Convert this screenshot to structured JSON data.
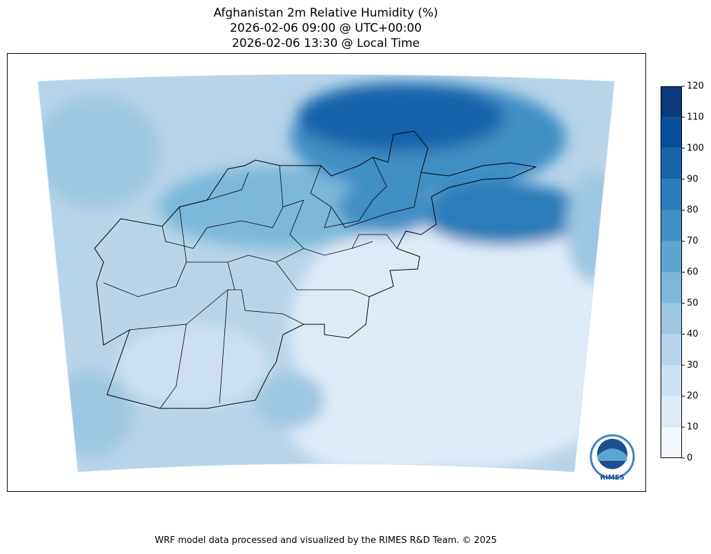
{
  "header": {
    "title": [
      "Afghanistan 2m Relative Humidity (%)",
      "2026-02-06 09:00 @ UTC+00:00",
      "2026-02-06 13:30 @ Local Time"
    ]
  },
  "colorbar": {
    "ticks": [
      0,
      10,
      20,
      30,
      40,
      50,
      60,
      70,
      80,
      90,
      100,
      110,
      120
    ],
    "colors": [
      "#f2f8fd",
      "#deebf7",
      "#cde0f1",
      "#b7d4ea",
      "#9cc6e1",
      "#7db8da",
      "#5da5d1",
      "#3f8fc5",
      "#2b7bba",
      "#1764ab",
      "#08509b",
      "#0a3a7a"
    ]
  },
  "logo": {
    "text": "RIMES"
  },
  "footer": "WRF model data processed and visualized by the RIMES R&D Team. © 2025"
}
